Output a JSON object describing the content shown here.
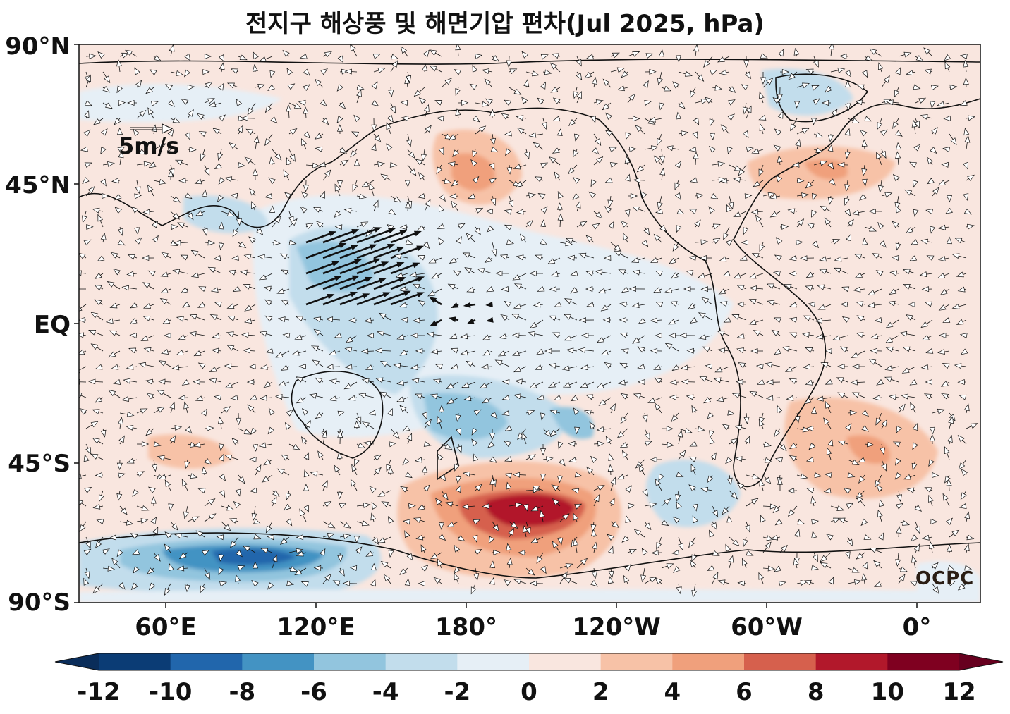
{
  "title": "전지구 해상풍 및 해면기압 편차(Jul 2025, hPa)",
  "lat_labels": [
    "90°N",
    "45°N",
    "EQ",
    "45°S",
    "90°S"
  ],
  "lon_labels": [
    "60°E",
    "120°E",
    "180°",
    "120°W",
    "60°W",
    "0°"
  ],
  "reference_vector": "5m/s",
  "logo": "OCPC",
  "colorbar": {
    "ticks": [
      "-12",
      "-10",
      "-8",
      "-6",
      "-4",
      "-2",
      "0",
      "2",
      "4",
      "6",
      "8",
      "10",
      "12"
    ],
    "colors": [
      "#0b3c75",
      "#2166ac",
      "#4393c3",
      "#92c5de",
      "#c2ddec",
      "#e6eff6",
      "#f9e6df",
      "#f7c2a7",
      "#f0a07c",
      "#d6604d",
      "#b2182b",
      "#7f0020"
    ],
    "under_color": "#0a2d5a",
    "over_color": "#67001f"
  }
}
